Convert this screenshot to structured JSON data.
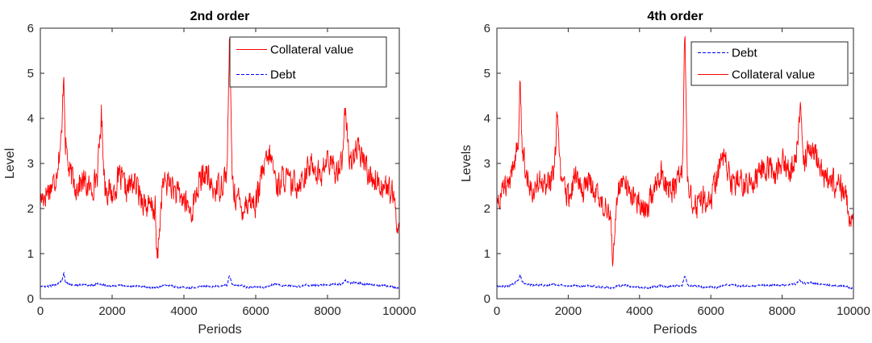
{
  "chart_data": [
    {
      "type": "line",
      "title": "2nd order",
      "xlabel": "Periods",
      "ylabel": "Level",
      "xlim": [
        0,
        10000
      ],
      "ylim": [
        0,
        6
      ],
      "xticks": [
        0,
        2000,
        4000,
        6000,
        8000,
        10000
      ],
      "yticks": [
        0,
        1,
        2,
        3,
        4,
        5,
        6
      ],
      "grid": false,
      "legend": "top-right",
      "series": [
        {
          "name": "Collateral value",
          "color": "#ff0000",
          "style": "solid",
          "x": [
            0,
            200,
            400,
            600,
            650,
            700,
            800,
            1000,
            1200,
            1400,
            1600,
            1700,
            1800,
            2000,
            2200,
            2400,
            2600,
            2800,
            3000,
            3200,
            3250,
            3400,
            3600,
            3800,
            4000,
            4200,
            4400,
            4600,
            4800,
            5000,
            5200,
            5270,
            5350,
            5400,
            5600,
            5800,
            6000,
            6200,
            6400,
            6600,
            6800,
            7000,
            7200,
            7400,
            7600,
            7800,
            8000,
            8200,
            8400,
            8500,
            8600,
            8800,
            9000,
            9200,
            9400,
            9600,
            9800,
            10000
          ],
          "y": [
            2.2,
            2.4,
            2.6,
            3.6,
            5.2,
            3.5,
            2.8,
            2.5,
            2.6,
            2.4,
            2.8,
            4.1,
            2.5,
            2.3,
            2.7,
            2.4,
            2.6,
            2.3,
            2.0,
            2.0,
            0.75,
            2.5,
            2.6,
            2.3,
            2.2,
            1.9,
            2.5,
            2.8,
            2.4,
            2.5,
            2.8,
            5.75,
            2.6,
            2.4,
            2.0,
            2.2,
            2.1,
            2.8,
            3.2,
            2.5,
            2.7,
            2.5,
            2.6,
            2.8,
            3.0,
            2.7,
            3.1,
            2.8,
            3.1,
            4.25,
            3.0,
            3.3,
            3.1,
            2.7,
            2.6,
            2.5,
            2.3,
            1.5
          ]
        },
        {
          "name": "Debt",
          "color": "#0000ff",
          "style": "dashed",
          "x": [
            0,
            200,
            400,
            600,
            650,
            700,
            800,
            1000,
            1200,
            1400,
            1600,
            1800,
            2000,
            2200,
            2400,
            2600,
            2800,
            3000,
            3200,
            3400,
            3600,
            3800,
            4000,
            4200,
            4400,
            4600,
            4800,
            5000,
            5200,
            5270,
            5350,
            5600,
            5800,
            6000,
            6200,
            6400,
            6600,
            6800,
            7000,
            7200,
            7400,
            7600,
            7800,
            8000,
            8200,
            8400,
            8500,
            8600,
            8800,
            9000,
            9200,
            9400,
            9600,
            9800,
            10000
          ],
          "y": [
            0.28,
            0.27,
            0.3,
            0.4,
            0.58,
            0.38,
            0.32,
            0.3,
            0.31,
            0.29,
            0.33,
            0.3,
            0.28,
            0.3,
            0.27,
            0.29,
            0.27,
            0.25,
            0.24,
            0.28,
            0.3,
            0.26,
            0.25,
            0.24,
            0.27,
            0.29,
            0.27,
            0.28,
            0.3,
            0.52,
            0.3,
            0.28,
            0.25,
            0.26,
            0.25,
            0.3,
            0.32,
            0.28,
            0.29,
            0.27,
            0.3,
            0.29,
            0.31,
            0.3,
            0.32,
            0.33,
            0.4,
            0.34,
            0.36,
            0.33,
            0.31,
            0.3,
            0.29,
            0.27,
            0.22
          ]
        }
      ]
    },
    {
      "type": "line",
      "title": "4th order",
      "xlabel": "Periods",
      "ylabel": "Levels",
      "xlim": [
        0,
        10000
      ],
      "ylim": [
        0,
        6
      ],
      "xticks": [
        0,
        2000,
        4000,
        6000,
        8000,
        10000
      ],
      "yticks": [
        0,
        1,
        2,
        3,
        4,
        5,
        6
      ],
      "grid": false,
      "legend": "top-right",
      "series": [
        {
          "name": "Debt",
          "color": "#0000ff",
          "style": "dashed",
          "x": [
            0,
            200,
            400,
            600,
            650,
            700,
            800,
            1000,
            1200,
            1400,
            1600,
            1800,
            2000,
            2200,
            2400,
            2600,
            2800,
            3000,
            3200,
            3400,
            3600,
            3800,
            4000,
            4200,
            4400,
            4600,
            4800,
            5000,
            5200,
            5270,
            5350,
            5600,
            5800,
            6000,
            6200,
            6400,
            6600,
            6800,
            7000,
            7200,
            7400,
            7600,
            7800,
            8000,
            8200,
            8400,
            8500,
            8600,
            8800,
            9000,
            9200,
            9400,
            9600,
            9800,
            10000
          ],
          "y": [
            0.28,
            0.27,
            0.3,
            0.4,
            0.56,
            0.38,
            0.32,
            0.3,
            0.31,
            0.29,
            0.33,
            0.3,
            0.28,
            0.3,
            0.27,
            0.29,
            0.27,
            0.25,
            0.24,
            0.28,
            0.3,
            0.26,
            0.25,
            0.24,
            0.27,
            0.29,
            0.27,
            0.28,
            0.3,
            0.52,
            0.3,
            0.28,
            0.25,
            0.26,
            0.25,
            0.3,
            0.32,
            0.28,
            0.29,
            0.27,
            0.3,
            0.29,
            0.31,
            0.3,
            0.32,
            0.33,
            0.42,
            0.34,
            0.36,
            0.33,
            0.31,
            0.3,
            0.29,
            0.27,
            0.22
          ]
        },
        {
          "name": "Collateral value",
          "color": "#ff0000",
          "style": "solid",
          "x": [
            0,
            200,
            400,
            600,
            650,
            700,
            800,
            1000,
            1200,
            1400,
            1600,
            1700,
            1800,
            2000,
            2200,
            2400,
            2600,
            2800,
            3000,
            3200,
            3250,
            3400,
            3600,
            3800,
            4000,
            4200,
            4400,
            4600,
            4800,
            5000,
            5200,
            5270,
            5350,
            5400,
            5600,
            5800,
            6000,
            6200,
            6400,
            6600,
            6800,
            7000,
            7200,
            7400,
            7600,
            7800,
            8000,
            8200,
            8400,
            8500,
            8600,
            8800,
            9000,
            9200,
            9400,
            9600,
            9800,
            10000
          ],
          "y": [
            2.2,
            2.4,
            2.6,
            3.6,
            5.3,
            3.5,
            2.8,
            2.5,
            2.6,
            2.4,
            2.8,
            4.15,
            2.5,
            2.3,
            2.7,
            2.4,
            2.6,
            2.3,
            2.0,
            2.0,
            0.72,
            2.5,
            2.6,
            2.3,
            2.2,
            1.9,
            2.5,
            2.8,
            2.4,
            2.5,
            2.8,
            5.85,
            2.6,
            2.4,
            2.0,
            2.2,
            2.1,
            2.8,
            3.2,
            2.5,
            2.7,
            2.5,
            2.6,
            2.8,
            3.0,
            2.7,
            3.1,
            2.8,
            3.1,
            4.3,
            3.0,
            3.3,
            3.1,
            2.7,
            2.6,
            2.5,
            2.3,
            1.5
          ]
        }
      ]
    }
  ]
}
